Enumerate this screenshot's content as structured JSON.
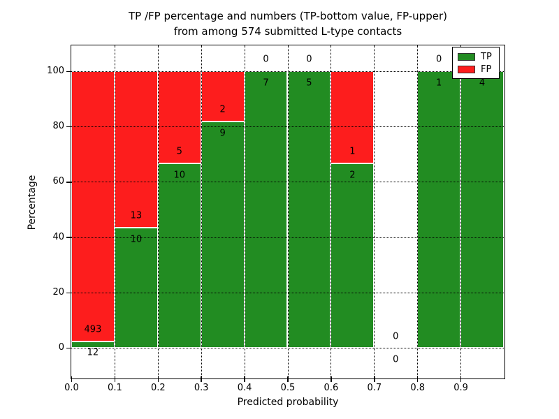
{
  "chart_data": {
    "type": "bar",
    "subtype": "stacked-percentage",
    "title": "TP /FP percentage and numbers (TP-bottom value, FP-upper)",
    "title_line2": "from among 574 submitted L-type contacts",
    "xlabel": "Predicted probability",
    "ylabel": "Percentage",
    "total_submitted_contacts": 574,
    "x_tick_labels": [
      "0.0",
      "0.1",
      "0.2",
      "0.3",
      "0.4",
      "0.5",
      "0.6",
      "0.7",
      "0.8",
      "0.9"
    ],
    "y_tick_values": [
      0,
      20,
      40,
      60,
      80,
      100
    ],
    "xlim": [
      0.0,
      1.0
    ],
    "ylim": [
      -10.8,
      109.3
    ],
    "bin_width": 0.1,
    "grid": true,
    "colors": {
      "tp": "#228c22",
      "fp": "#fd1d1d",
      "bar_edge": "#ffffff",
      "grid": "#000000"
    },
    "legend": {
      "position": "upper right",
      "entries": [
        {
          "label": "TP",
          "color": "#228c22"
        },
        {
          "label": "FP",
          "color": "#fd1d1d"
        }
      ]
    },
    "bins": [
      {
        "x_range": [
          0.0,
          0.1
        ],
        "tp": 12,
        "fp": 493,
        "tp_pct": 2.4
      },
      {
        "x_range": [
          0.1,
          0.2
        ],
        "tp": 10,
        "fp": 13,
        "tp_pct": 43.5
      },
      {
        "x_range": [
          0.2,
          0.3
        ],
        "tp": 10,
        "fp": 5,
        "tp_pct": 66.7
      },
      {
        "x_range": [
          0.3,
          0.4
        ],
        "tp": 9,
        "fp": 2,
        "tp_pct": 81.8
      },
      {
        "x_range": [
          0.4,
          0.5
        ],
        "tp": 7,
        "fp": 0,
        "tp_pct": 100
      },
      {
        "x_range": [
          0.5,
          0.6
        ],
        "tp": 5,
        "fp": 0,
        "tp_pct": 100
      },
      {
        "x_range": [
          0.6,
          0.7
        ],
        "tp": 2,
        "fp": 1,
        "tp_pct": 66.7
      },
      {
        "x_range": [
          0.7,
          0.8
        ],
        "tp": 0,
        "fp": 0,
        "tp_pct": null
      },
      {
        "x_range": [
          0.8,
          0.9
        ],
        "tp": 1,
        "fp": 0,
        "tp_pct": 100
      },
      {
        "x_range": [
          0.9,
          1.0
        ],
        "tp": 4,
        "fp": 0,
        "tp_pct": 100
      }
    ]
  }
}
